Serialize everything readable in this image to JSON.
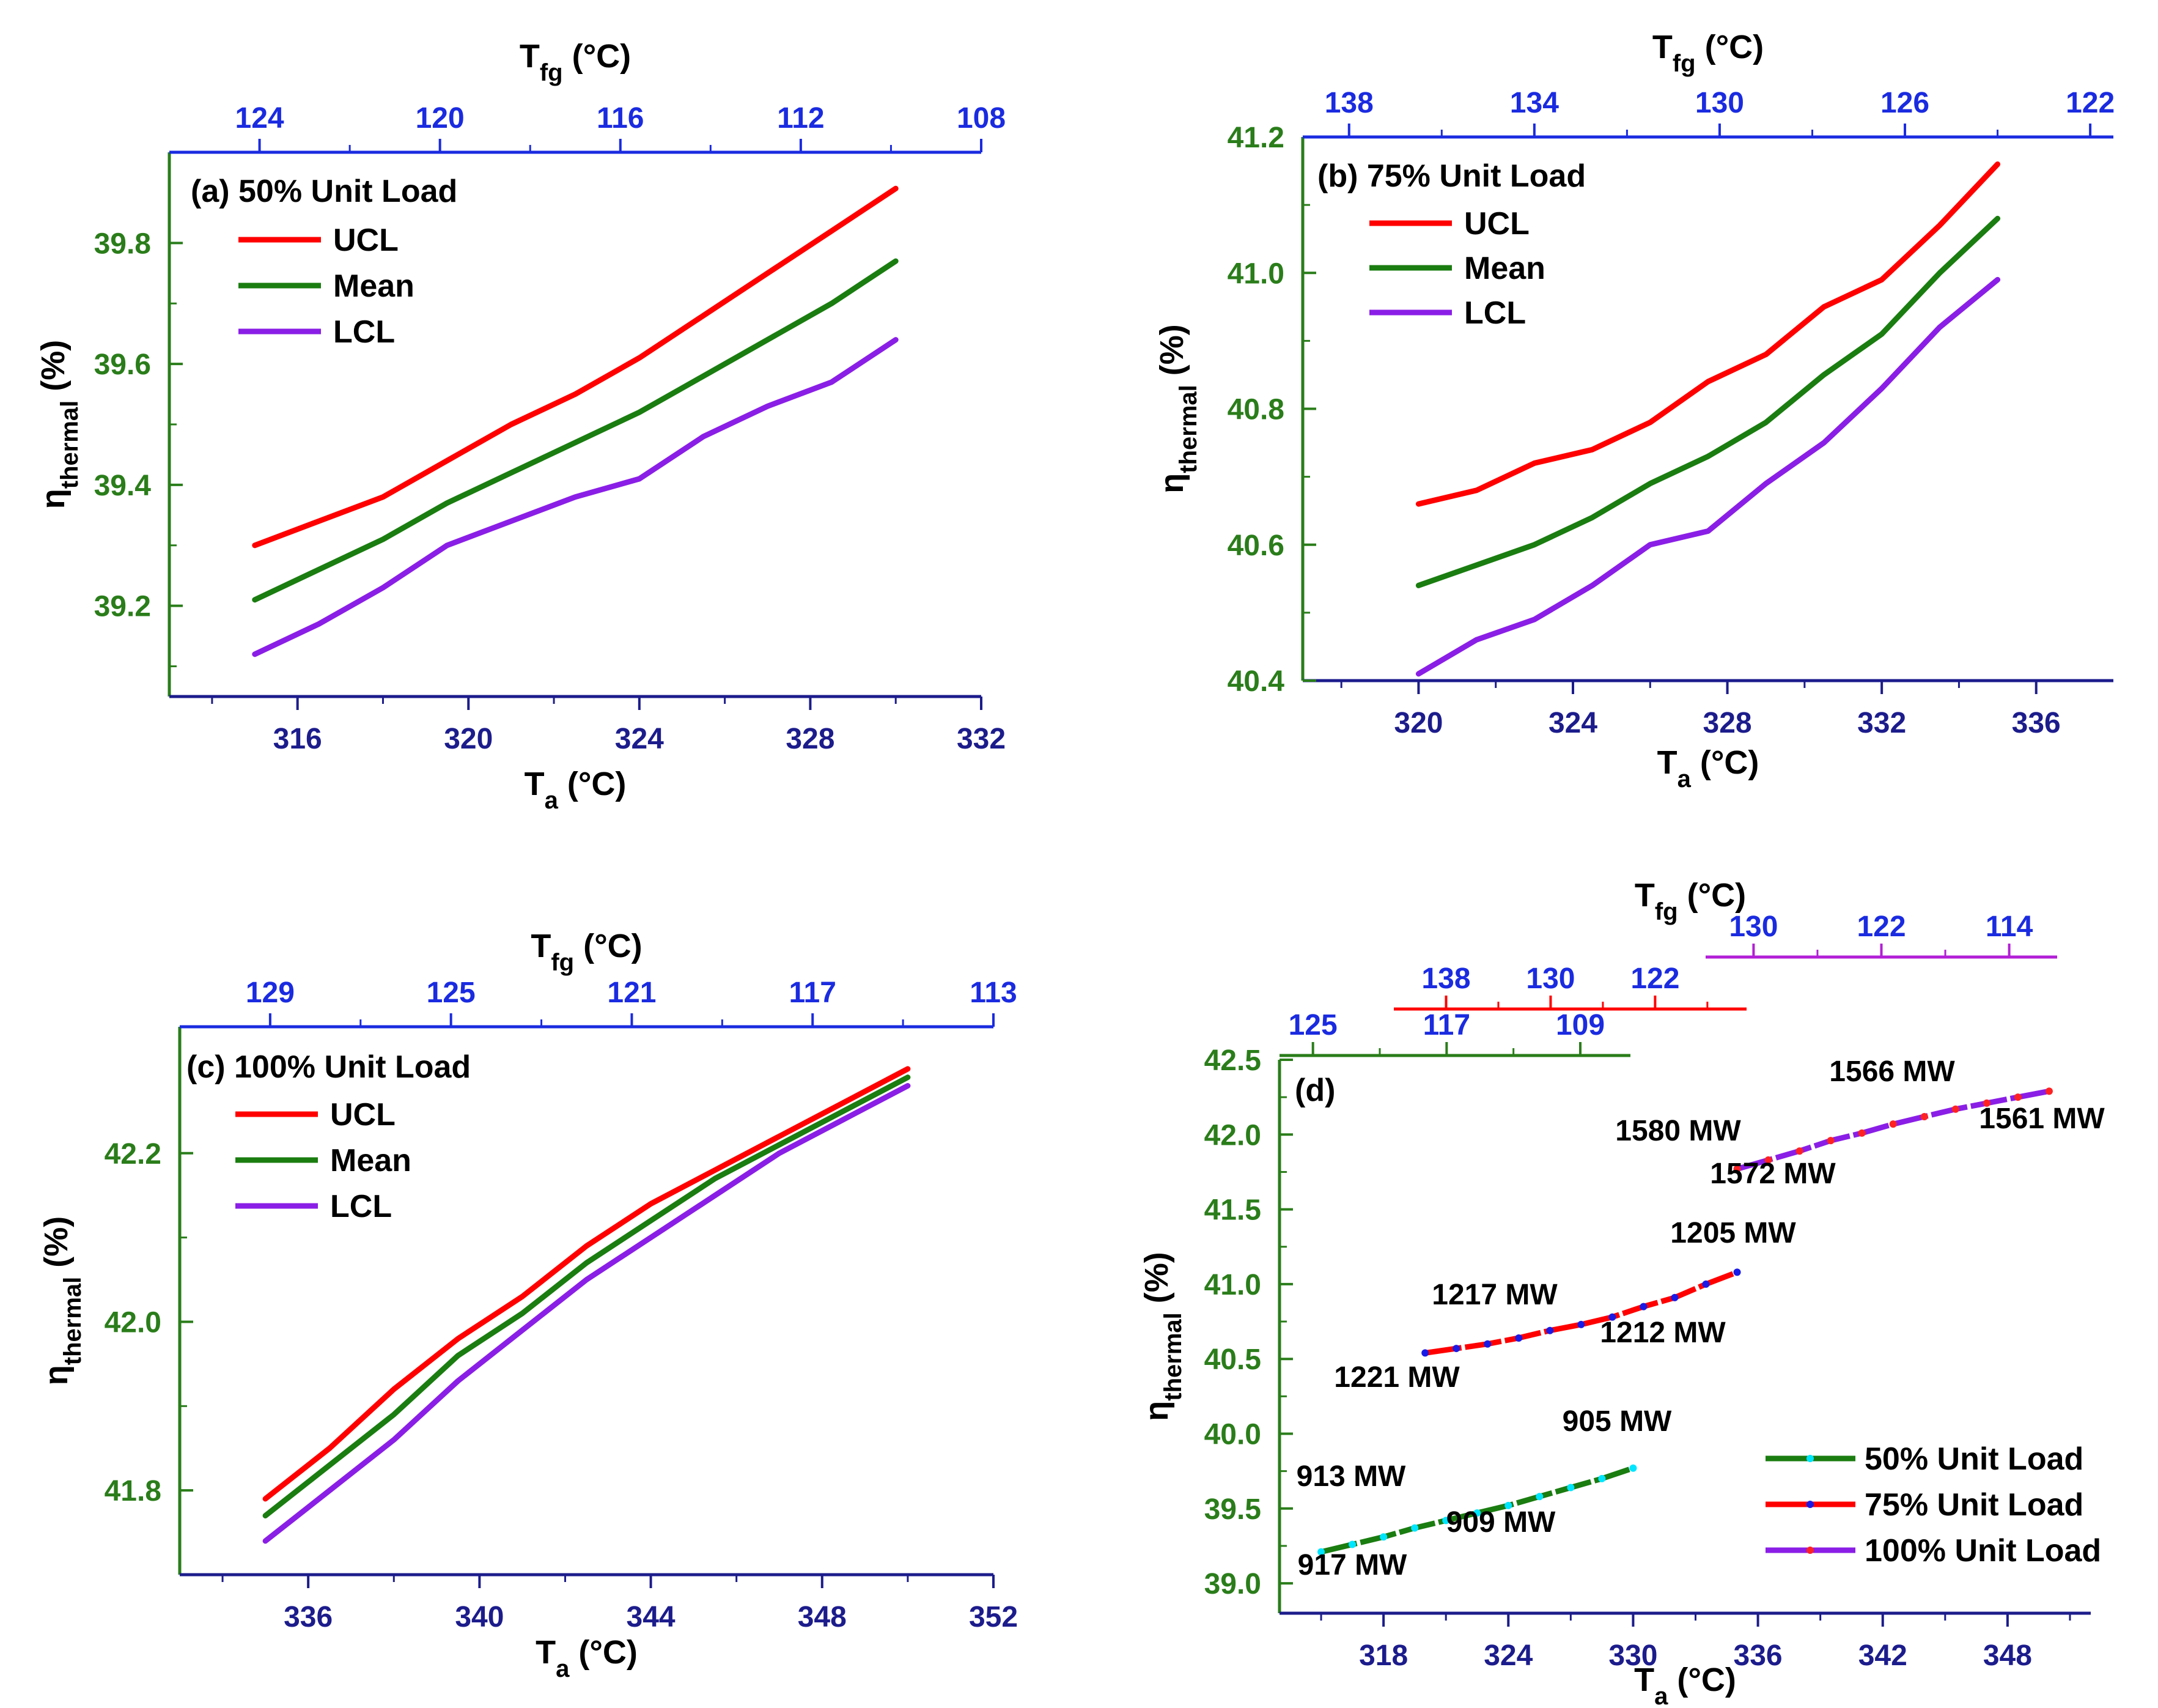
{
  "chart_data": [
    {
      "type": "line",
      "title": "(a) 50% Unit Load",
      "xlabel": "T_a (°C)",
      "x2label": "T_fg (°C)",
      "ylabel": "η_thermal (%)",
      "xlim": [
        313,
        332
      ],
      "ylim": [
        39.05,
        39.95
      ],
      "xticks": [
        "316",
        "320",
        "324",
        "328",
        "332"
      ],
      "yticks": [
        "39.2",
        "39.4",
        "39.6",
        "39.8"
      ],
      "x2ticks": [
        "124",
        "120",
        "116",
        "112",
        "108"
      ],
      "x": [
        315,
        316.5,
        318,
        319.5,
        321,
        322.5,
        324,
        325.5,
        327,
        328.5,
        330
      ],
      "series": [
        {
          "name": "UCL",
          "color": "#ff0000",
          "values": [
            39.3,
            39.34,
            39.38,
            39.44,
            39.5,
            39.55,
            39.61,
            39.68,
            39.75,
            39.82,
            39.89
          ]
        },
        {
          "name": "Mean",
          "color": "#1a7d10",
          "values": [
            39.21,
            39.26,
            39.31,
            39.37,
            39.42,
            39.47,
            39.52,
            39.58,
            39.64,
            39.7,
            39.77
          ]
        },
        {
          "name": "LCL",
          "color": "#8a1ee6",
          "values": [
            39.12,
            39.17,
            39.23,
            39.3,
            39.34,
            39.38,
            39.41,
            39.48,
            39.53,
            39.57,
            39.64
          ]
        }
      ],
      "legend": "top-left"
    },
    {
      "type": "line",
      "title": "(b) 75% Unit Load",
      "xlabel": "T_a (°C)",
      "x2label": "T_fg (°C)",
      "ylabel": "η_thermal (%)",
      "xlim": [
        317,
        338
      ],
      "ylim": [
        40.4,
        41.2
      ],
      "xticks": [
        "320",
        "324",
        "328",
        "332",
        "336"
      ],
      "yticks": [
        "40.4",
        "40.6",
        "40.8",
        "41.0",
        "41.2"
      ],
      "x2ticks": [
        "138",
        "134",
        "130",
        "126",
        "122"
      ],
      "x": [
        320,
        321.5,
        323,
        324.5,
        326,
        327.5,
        329,
        330.5,
        332,
        333.5,
        335
      ],
      "series": [
        {
          "name": "UCL",
          "color": "#ff0000",
          "values": [
            40.66,
            40.68,
            40.72,
            40.74,
            40.78,
            40.84,
            40.88,
            40.95,
            40.99,
            41.07,
            41.16
          ]
        },
        {
          "name": "Mean",
          "color": "#1a7d10",
          "values": [
            40.54,
            40.57,
            40.6,
            40.64,
            40.69,
            40.73,
            40.78,
            40.85,
            40.91,
            41.0,
            41.08
          ]
        },
        {
          "name": "LCL",
          "color": "#8a1ee6",
          "values": [
            40.41,
            40.46,
            40.49,
            40.54,
            40.6,
            40.62,
            40.69,
            40.75,
            40.83,
            40.92,
            40.99
          ]
        }
      ],
      "legend": "top-left"
    },
    {
      "type": "line",
      "title": "(c) 100% Unit Load",
      "xlabel": "T_a (°C)",
      "x2label": "T_fg (°C)",
      "ylabel": "η_thermal (%)",
      "xlim": [
        333,
        352
      ],
      "ylim": [
        41.7,
        42.35
      ],
      "xticks": [
        "336",
        "340",
        "344",
        "348",
        "352"
      ],
      "yticks": [
        "41.8",
        "42.0",
        "42.2"
      ],
      "x2ticks": [
        "129",
        "125",
        "121",
        "117",
        "113"
      ],
      "x": [
        335,
        336.5,
        338,
        339.5,
        341,
        342.5,
        344,
        345.5,
        347,
        348.5,
        350
      ],
      "series": [
        {
          "name": "UCL",
          "color": "#ff0000",
          "values": [
            41.79,
            41.85,
            41.92,
            41.98,
            42.03,
            42.09,
            42.14,
            42.18,
            42.22,
            42.26,
            42.3
          ]
        },
        {
          "name": "Mean",
          "color": "#1a7d10",
          "values": [
            41.77,
            41.83,
            41.89,
            41.96,
            42.01,
            42.07,
            42.12,
            42.17,
            42.21,
            42.25,
            42.29
          ]
        },
        {
          "name": "LCL",
          "color": "#8a1ee6",
          "values": [
            41.74,
            41.8,
            41.86,
            41.93,
            41.99,
            42.05,
            42.1,
            42.15,
            42.2,
            42.24,
            42.28
          ]
        }
      ],
      "legend": "top-left"
    },
    {
      "type": "line",
      "title": "(d)",
      "xlabel": "T_a (°C)",
      "x2label": "T_fg (°C)",
      "ylabel": "η_thermal (%)",
      "xlim": [
        313,
        352
      ],
      "ylim": [
        38.8,
        42.5
      ],
      "xticks": [
        "318",
        "324",
        "330",
        "336",
        "342",
        "348"
      ],
      "yticks": [
        "39.0",
        "39.5",
        "40.0",
        "40.5",
        "41.0",
        "41.5",
        "42.0",
        "42.5"
      ],
      "x2ticks_50": [
        "125",
        "117",
        "109"
      ],
      "x2ticks_75": [
        "138",
        "130",
        "122"
      ],
      "x2ticks_100": [
        "130",
        "122",
        "114"
      ],
      "x2_50_range": [
        127,
        106
      ],
      "x2_75_range": [
        142,
        115
      ],
      "x2_100_range": [
        133,
        111
      ],
      "series": [
        {
          "name": "50% Unit Load",
          "color": "#1a7d10",
          "marker_color": "#00e5ff",
          "x": [
            315,
            316.5,
            318,
            319.5,
            321,
            322.5,
            324,
            325.5,
            327,
            328.5,
            330
          ],
          "values": [
            39.21,
            39.26,
            39.31,
            39.37,
            39.42,
            39.47,
            39.52,
            39.58,
            39.64,
            39.7,
            39.77
          ]
        },
        {
          "name": "75% Unit Load",
          "color": "#ff0000",
          "marker_color": "#1a1ae6",
          "x": [
            320,
            321.5,
            323,
            324.5,
            326,
            327.5,
            329,
            330.5,
            332,
            333.5,
            335
          ],
          "values": [
            40.54,
            40.57,
            40.6,
            40.64,
            40.69,
            40.73,
            40.78,
            40.85,
            40.91,
            41.0,
            41.08
          ]
        },
        {
          "name": "100% Unit Load",
          "color": "#8a1ee6",
          "marker_color": "#ff2222",
          "x": [
            335,
            336.5,
            338,
            339.5,
            341,
            342.5,
            344,
            345.5,
            347,
            348.5,
            350
          ],
          "values": [
            41.77,
            41.83,
            41.89,
            41.96,
            42.01,
            42.07,
            42.12,
            42.17,
            42.21,
            42.25,
            42.29
          ]
        }
      ],
      "annotations": [
        "917 MW",
        "913 MW",
        "909 MW",
        "905 MW",
        "1221 MW",
        "1217 MW",
        "1212 MW",
        "1205 MW",
        "1580 MW",
        "1572 MW",
        "1566 MW",
        "1561 MW"
      ],
      "legend": "bottom-right"
    }
  ]
}
